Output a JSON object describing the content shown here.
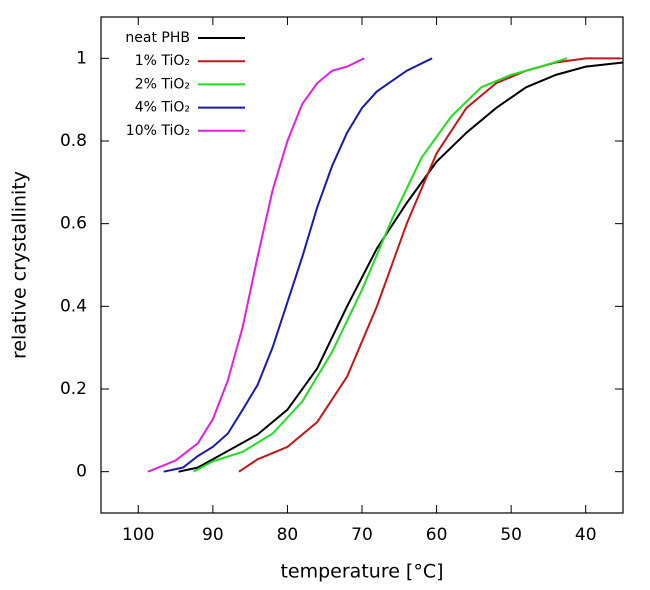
{
  "chart_data": {
    "type": "line",
    "x_label": "temperature [°C]",
    "y_label": "relative crystallinity",
    "xlim": [
      105,
      35
    ],
    "xticks": [
      100,
      90,
      80,
      70,
      60,
      50,
      40
    ],
    "ylim": [
      -0.1,
      1.1
    ],
    "yticks": [
      0,
      0.2,
      0.4,
      0.6,
      0.8,
      1
    ],
    "grid": false,
    "legend": "upper left",
    "series": [
      {
        "name": "neat PHB",
        "color": "#000000",
        "x": [
          94.6,
          92,
          88,
          84,
          80,
          76,
          72,
          68,
          64,
          60,
          56,
          52,
          48,
          44,
          40,
          35
        ],
        "values": [
          0,
          0.01,
          0.05,
          0.09,
          0.15,
          0.25,
          0.4,
          0.54,
          0.65,
          0.75,
          0.82,
          0.88,
          0.93,
          0.96,
          0.98,
          0.99
        ]
      },
      {
        "name": "1% TiO₂",
        "color": "#c0181a",
        "x": [
          86.5,
          84,
          80,
          76,
          72,
          68,
          64,
          60,
          56,
          52,
          48,
          44,
          40,
          35.3
        ],
        "values": [
          0,
          0.03,
          0.06,
          0.12,
          0.23,
          0.4,
          0.6,
          0.77,
          0.88,
          0.94,
          0.97,
          0.99,
          1,
          1
        ]
      },
      {
        "name": "2% TiO₂",
        "color": "#22dd22",
        "x": [
          92.6,
          90,
          86,
          82,
          78,
          74,
          70,
          66,
          62,
          58,
          54,
          50,
          46,
          42.5
        ],
        "values": [
          0,
          0.025,
          0.048,
          0.092,
          0.17,
          0.29,
          0.44,
          0.61,
          0.76,
          0.86,
          0.93,
          0.96,
          0.98,
          1
        ]
      },
      {
        "name": "4% TiO₂",
        "color": "#1a1aa8",
        "x": [
          96.6,
          94,
          92,
          90,
          88,
          86,
          84,
          82,
          80,
          78,
          76,
          74,
          72,
          70,
          68,
          64,
          60.6
        ],
        "values": [
          0,
          0.01,
          0.038,
          0.06,
          0.092,
          0.15,
          0.21,
          0.3,
          0.41,
          0.52,
          0.64,
          0.74,
          0.82,
          0.88,
          0.92,
          0.97,
          1
        ]
      },
      {
        "name": "10% TiO₂",
        "color": "#e020e0",
        "x": [
          98.7,
          95,
          92,
          90,
          88,
          86,
          84,
          82,
          80,
          78,
          76,
          74,
          72,
          69.7
        ],
        "values": [
          0,
          0.027,
          0.069,
          0.127,
          0.22,
          0.35,
          0.52,
          0.68,
          0.8,
          0.89,
          0.94,
          0.97,
          0.98,
          1
        ]
      }
    ]
  }
}
